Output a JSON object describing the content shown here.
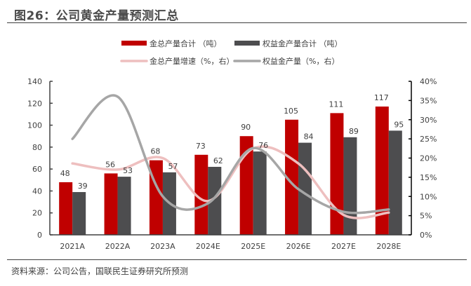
{
  "title": "图26：公司黄金产量预测汇总",
  "source": "资料来源：公司公告，国联民生证券研究所预测",
  "colors": {
    "gold_total": "#c00000",
    "equity_gold": "#4d4d4f",
    "gold_growth": "#eebfbf",
    "equity_growth": "#a6a6a6",
    "axis": "#404040"
  },
  "chart_data": {
    "type": "bar",
    "title": "图26：公司黄金产量预测汇总",
    "categories": [
      "2021A",
      "2022A",
      "2023A",
      "2024E",
      "2025E",
      "2026E",
      "2027E",
      "2028E"
    ],
    "series": [
      {
        "name": "金总产量合计 （吨）",
        "type": "bar",
        "axis": "left",
        "values": [
          48,
          56,
          68,
          73,
          90,
          105,
          111,
          117
        ]
      },
      {
        "name": "权益金产量合计 （吨）",
        "type": "bar",
        "axis": "left",
        "values": [
          39,
          53,
          57,
          62,
          76,
          84,
          89,
          95
        ]
      },
      {
        "name": "金总产量增速（%，右）",
        "type": "line",
        "axis": "right",
        "smooth": true,
        "values": [
          18.6,
          17.0,
          20.0,
          8.8,
          22.5,
          18.6,
          5.2,
          5.8
        ]
      },
      {
        "name": "权益金产量（%，右）",
        "type": "line",
        "axis": "right",
        "smooth": true,
        "values": [
          25.0,
          36.0,
          10.0,
          8.2,
          22.6,
          11.9,
          6.0,
          6.6
        ]
      }
    ],
    "left_axis": {
      "min": 0,
      "max": 140,
      "step": 20,
      "ticks": [
        "0",
        "20",
        "40",
        "60",
        "80",
        "100",
        "120",
        "140"
      ]
    },
    "right_axis": {
      "min": 0,
      "max": 40,
      "step": 5,
      "ticks": [
        "0%",
        "5%",
        "10%",
        "15%",
        "20%",
        "25%",
        "30%",
        "35%",
        "40%"
      ]
    },
    "xlabel": "",
    "ylabel": "",
    "grid": false,
    "legend": {
      "position": "top-center",
      "rows": 2
    }
  }
}
